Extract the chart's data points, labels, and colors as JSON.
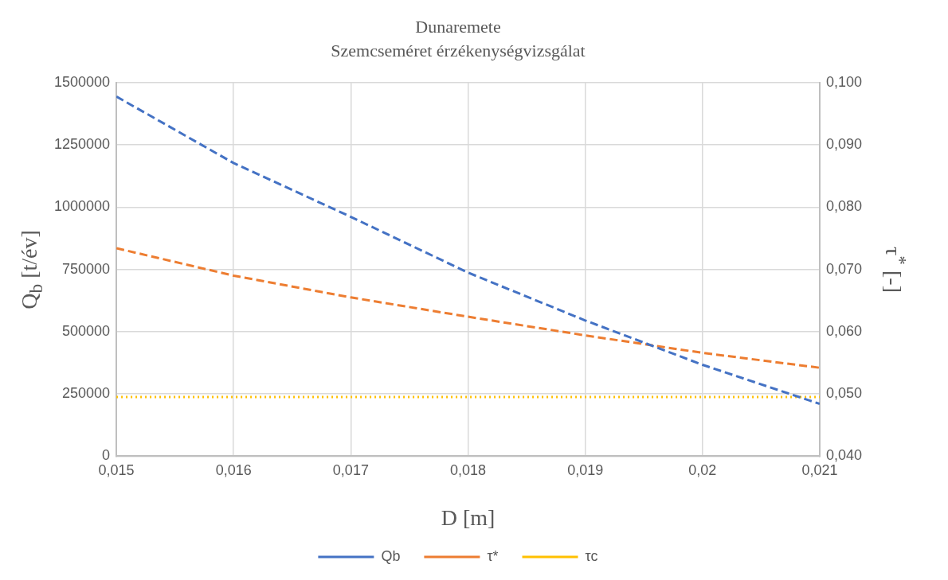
{
  "chart_data": {
    "type": "line",
    "title": "Dunaremete",
    "subtitle": "Szemcseméret érzékenységvizsgálat",
    "xlabel": "D [m]",
    "ylabel": "Q$_{b}$ [t/év]",
    "y2label": "τ$^{*}$ [-]",
    "x": [
      0.015,
      0.016,
      0.017,
      0.018,
      0.019,
      0.02,
      0.021
    ],
    "series": [
      {
        "name": "Qb",
        "color": "#4472c4",
        "line_style": "dashed",
        "values": [
          1444000,
          1177000,
          961000,
          737000,
          545000,
          367000,
          210000
        ]
      },
      {
        "name": "τ*",
        "color": "#ed7d31",
        "line_style": "dashed",
        "axis": "y2",
        "values": [
          0.0734,
          0.069,
          0.0655,
          0.0624,
          0.0594,
          0.0566,
          0.0542
        ]
      },
      {
        "name": "τc",
        "color": "#ffc000",
        "line_style": "dotted",
        "axis": "y2",
        "values": [
          0.0495,
          0.0495,
          0.0495,
          0.0495,
          0.0495,
          0.0495,
          0.0495
        ]
      }
    ],
    "xlim": [
      0.015,
      0.021
    ],
    "xticks": [
      {
        "value": 0.015,
        "label": "0,015"
      },
      {
        "value": 0.016,
        "label": "0,016"
      },
      {
        "value": 0.017,
        "label": "0,017"
      },
      {
        "value": 0.018,
        "label": "0,018"
      },
      {
        "value": 0.019,
        "label": "0,019"
      },
      {
        "value": 0.02,
        "label": "0,02"
      },
      {
        "value": 0.021,
        "label": "0,021"
      }
    ],
    "ylim": [
      0,
      1500000
    ],
    "yticks": [
      0,
      250000,
      500000,
      750000,
      1000000,
      1250000,
      1500000
    ],
    "y2lim": [
      0.04,
      0.1
    ],
    "y2ticks": [
      {
        "value": 0.04,
        "label": "0,040"
      },
      {
        "value": 0.05,
        "label": "0,050"
      },
      {
        "value": 0.06,
        "label": "0,060"
      },
      {
        "value": 0.07,
        "label": "0,070"
      },
      {
        "value": 0.08,
        "label": "0,080"
      },
      {
        "value": 0.09,
        "label": "0,090"
      },
      {
        "value": 0.1,
        "label": "0,100"
      }
    ],
    "grid": true,
    "legend": "bottom",
    "marker": "none"
  }
}
